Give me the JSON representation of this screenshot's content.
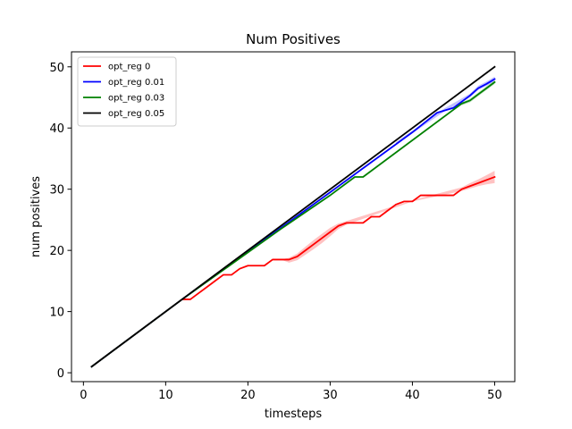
{
  "chart_data": {
    "type": "line",
    "title": "Num Positives",
    "xlabel": "timesteps",
    "ylabel": "num positives",
    "xlim": [
      -1.45,
      52.45
    ],
    "ylim": [
      -1.45,
      52.45
    ],
    "xticks": [
      0,
      10,
      20,
      30,
      40,
      50
    ],
    "yticks": [
      0,
      10,
      20,
      30,
      40,
      50
    ],
    "grid": false,
    "legend_position": "top-left",
    "series": [
      {
        "name": "opt_reg 0",
        "color": "#ff0000",
        "band_color": "#ff9999",
        "points": [
          [
            1,
            1
          ],
          [
            12,
            12
          ],
          [
            13,
            12
          ],
          [
            14,
            13
          ],
          [
            15,
            14
          ],
          [
            16,
            15
          ],
          [
            17,
            16
          ],
          [
            18,
            16
          ],
          [
            19,
            17
          ],
          [
            20,
            17.5
          ],
          [
            21,
            17.5
          ],
          [
            22,
            17.5
          ],
          [
            23,
            18.5
          ],
          [
            24,
            18.5
          ],
          [
            25,
            18.5
          ],
          [
            26,
            19
          ],
          [
            27,
            20
          ],
          [
            28,
            21
          ],
          [
            29,
            22
          ],
          [
            30,
            23
          ],
          [
            31,
            24
          ],
          [
            32,
            24.5
          ],
          [
            33,
            24.5
          ],
          [
            34,
            24.5
          ],
          [
            35,
            25.5
          ],
          [
            36,
            25.5
          ],
          [
            37,
            26.5
          ],
          [
            38,
            27.5
          ],
          [
            39,
            28
          ],
          [
            40,
            28
          ],
          [
            41,
            29
          ],
          [
            42,
            29
          ],
          [
            43,
            29
          ],
          [
            44,
            29
          ],
          [
            45,
            29
          ],
          [
            46,
            30
          ],
          [
            47,
            30.5
          ],
          [
            48,
            31
          ],
          [
            49,
            31.5
          ],
          [
            50,
            32
          ]
        ],
        "band": [
          [
            24,
            18.5,
            18.5
          ],
          [
            25,
            18,
            18.8
          ],
          [
            26,
            18.4,
            19.5
          ],
          [
            27,
            19.3,
            20.6
          ],
          [
            28,
            20.2,
            21.7
          ],
          [
            29,
            21.2,
            22.7
          ],
          [
            30,
            22.3,
            23.7
          ],
          [
            31,
            23.5,
            24.4
          ],
          [
            32,
            24.2,
            24.8
          ],
          [
            40,
            28,
            28.2
          ],
          [
            46,
            29.7,
            30.3
          ],
          [
            47,
            30.1,
            31
          ],
          [
            48,
            30.5,
            31.6
          ],
          [
            49,
            30.8,
            32.3
          ],
          [
            50,
            31,
            33
          ]
        ]
      },
      {
        "name": "opt_reg 0.01",
        "color": "#0000ff",
        "band_color": "#9999ff",
        "points": [
          [
            1,
            1
          ],
          [
            12,
            12
          ],
          [
            30,
            29.5
          ],
          [
            40,
            39.3
          ],
          [
            43,
            42.5
          ],
          [
            45,
            43.3
          ],
          [
            47,
            45.3
          ],
          [
            48,
            46.5
          ],
          [
            49,
            47.2
          ],
          [
            50,
            48
          ]
        ],
        "band": [
          [
            38,
            37.3,
            37.7
          ],
          [
            44,
            42.8,
            43.3
          ],
          [
            47,
            45,
            45.6
          ],
          [
            48,
            46.2,
            46.9
          ],
          [
            49,
            46.9,
            47.6
          ],
          [
            50,
            47.6,
            48.4
          ]
        ]
      },
      {
        "name": "opt_reg 0.03",
        "color": "#008000",
        "band_color": "#99cc99",
        "points": [
          [
            1,
            1
          ],
          [
            12,
            12
          ],
          [
            24,
            23.5
          ],
          [
            30,
            29
          ],
          [
            33,
            32
          ],
          [
            34,
            32
          ],
          [
            45,
            43
          ],
          [
            46,
            44
          ],
          [
            47,
            44.5
          ],
          [
            48,
            45.5
          ],
          [
            49,
            46.5
          ],
          [
            50,
            47.5
          ]
        ],
        "band": [
          [
            46,
            43.7,
            44.2
          ],
          [
            47,
            44.2,
            44.8
          ],
          [
            48,
            45.2,
            45.8
          ],
          [
            49,
            46.2,
            46.8
          ],
          [
            50,
            47.2,
            47.8
          ]
        ]
      },
      {
        "name": "opt_reg 0.05",
        "color": "#000000",
        "band_color": "#999999",
        "points": [
          [
            1,
            1
          ],
          [
            50,
            50
          ]
        ],
        "band": []
      }
    ]
  }
}
